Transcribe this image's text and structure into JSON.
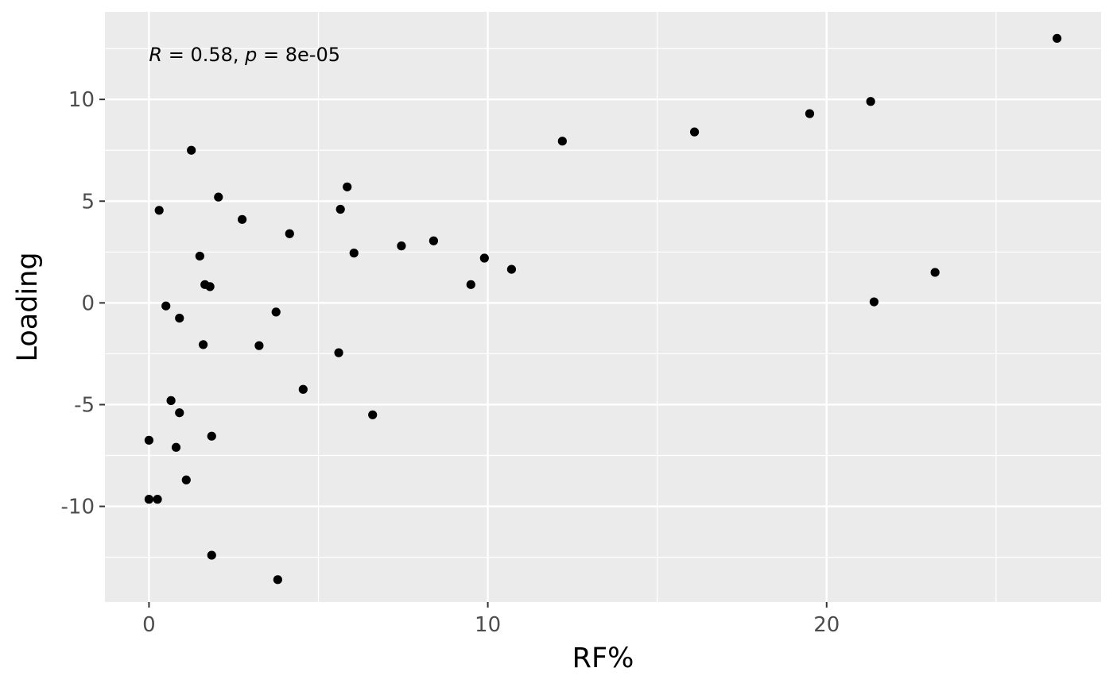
{
  "chart_data": {
    "type": "scatter",
    "xlabel": "RF%",
    "ylabel": "Loading",
    "xlim": [
      -1.3,
      28.1
    ],
    "ylim": [
      -14.7,
      14.3
    ],
    "x_ticks": [
      0,
      10,
      20
    ],
    "x_tick_labels": [
      "0",
      "10",
      "20"
    ],
    "x_minor_ticks": [
      5,
      15,
      25
    ],
    "y_ticks": [
      -10,
      -5,
      0,
      5,
      10
    ],
    "y_tick_labels": [
      "-10",
      "-5",
      "0",
      "5",
      "10"
    ],
    "y_minor_ticks": [
      -12.5,
      -7.5,
      -2.5,
      2.5,
      7.5,
      12.5
    ],
    "grid": true,
    "panel_background": "#ebebeb",
    "grid_color": "#ffffff",
    "point_color": "#000000",
    "annotation": {
      "R_symbol": "R",
      "R_value": " = 0.58, ",
      "p_symbol": "p",
      "p_value": " = 8e-05",
      "x": 0.0,
      "y": 12.2
    },
    "points": [
      {
        "x": 26.8,
        "y": 13.0
      },
      {
        "x": 21.3,
        "y": 9.9
      },
      {
        "x": 19.5,
        "y": 9.3
      },
      {
        "x": 16.1,
        "y": 8.4
      },
      {
        "x": 12.2,
        "y": 7.95
      },
      {
        "x": 1.25,
        "y": 7.5
      },
      {
        "x": 5.85,
        "y": 5.7
      },
      {
        "x": 2.05,
        "y": 5.2
      },
      {
        "x": 0.3,
        "y": 4.55
      },
      {
        "x": 5.65,
        "y": 4.6
      },
      {
        "x": 2.75,
        "y": 4.1
      },
      {
        "x": 4.15,
        "y": 3.4
      },
      {
        "x": 8.4,
        "y": 3.05
      },
      {
        "x": 7.45,
        "y": 2.8
      },
      {
        "x": 6.05,
        "y": 2.45
      },
      {
        "x": 1.5,
        "y": 2.3
      },
      {
        "x": 9.9,
        "y": 2.2
      },
      {
        "x": 10.7,
        "y": 1.65
      },
      {
        "x": 23.2,
        "y": 1.5
      },
      {
        "x": 9.5,
        "y": 0.9
      },
      {
        "x": 1.65,
        "y": 0.9
      },
      {
        "x": 1.8,
        "y": 0.8
      },
      {
        "x": 21.4,
        "y": 0.05
      },
      {
        "x": 0.5,
        "y": -0.15
      },
      {
        "x": 3.75,
        "y": -0.45
      },
      {
        "x": 0.9,
        "y": -0.75
      },
      {
        "x": 1.6,
        "y": -2.05
      },
      {
        "x": 3.25,
        "y": -2.1
      },
      {
        "x": 5.6,
        "y": -2.45
      },
      {
        "x": 4.55,
        "y": -4.25
      },
      {
        "x": 0.65,
        "y": -4.8
      },
      {
        "x": 0.9,
        "y": -5.4
      },
      {
        "x": 6.6,
        "y": -5.5
      },
      {
        "x": 1.85,
        "y": -6.55
      },
      {
        "x": 0.0,
        "y": -6.75
      },
      {
        "x": 0.8,
        "y": -7.1
      },
      {
        "x": 1.1,
        "y": -8.7
      },
      {
        "x": 0.0,
        "y": -9.65
      },
      {
        "x": 0.25,
        "y": -9.65
      },
      {
        "x": 1.85,
        "y": -12.4
      },
      {
        "x": 3.8,
        "y": -13.6
      }
    ]
  }
}
